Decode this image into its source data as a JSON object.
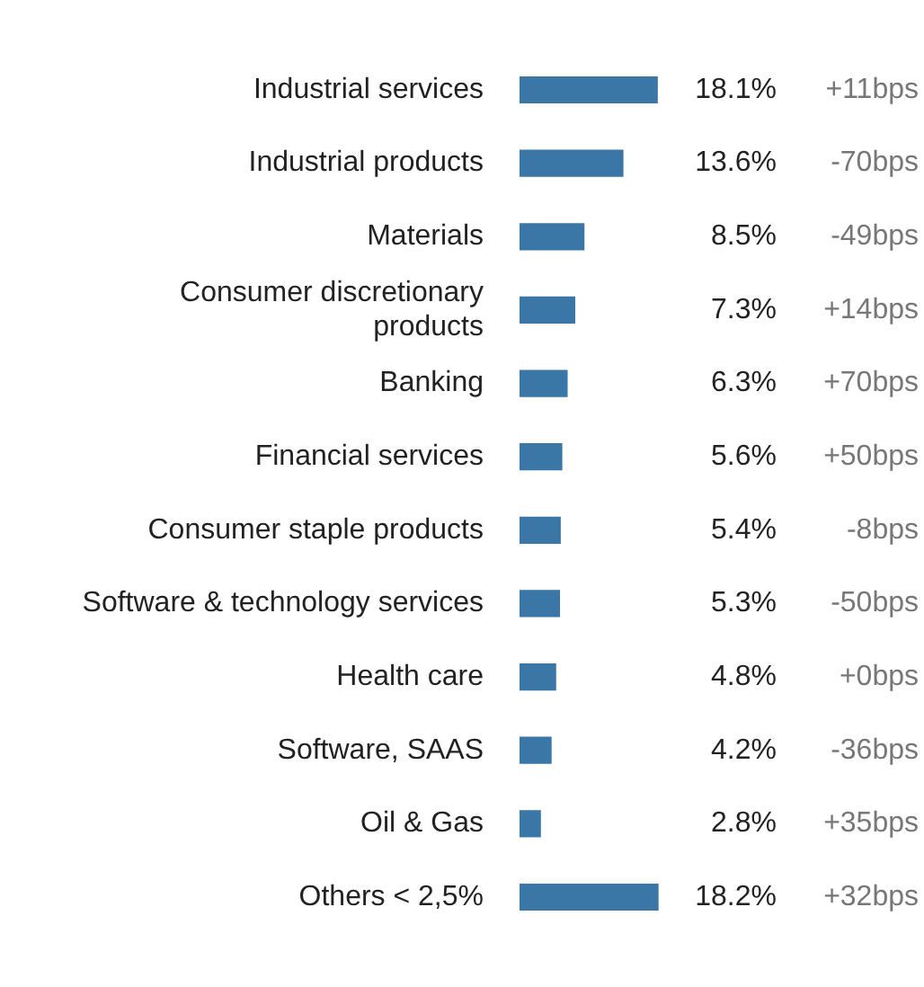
{
  "chart_data": {
    "type": "bar",
    "orientation": "horizontal",
    "categories": [
      "Industrial services",
      "Industrial products",
      "Materials",
      "Consumer discretionary products",
      "Banking",
      "Financial services",
      "Consumer staple products",
      "Software & technology services",
      "Health care",
      "Software, SAAS",
      "Oil & Gas",
      "Others < 2,5%"
    ],
    "values": [
      18.1,
      13.6,
      8.5,
      7.3,
      6.3,
      5.6,
      5.4,
      5.3,
      4.8,
      4.2,
      2.8,
      18.2
    ],
    "color": "#3a77a6",
    "value_labels": [
      "18.1%",
      "13.6%",
      "8.5%",
      "7.3%",
      "6.3%",
      "5.6%",
      "5.4%",
      "5.3%",
      "4.8%",
      "4.2%",
      "2.8%",
      "18.2%"
    ],
    "annotations": [
      "+11bps",
      "-70bps",
      "-49bps",
      "+14bps",
      "+70bps",
      "+50bps",
      "-8bps",
      "-50bps",
      "+0bps",
      "-36bps",
      "+35bps",
      "+32bps"
    ],
    "grid": false,
    "legend": false,
    "tick_labels": "y"
  }
}
